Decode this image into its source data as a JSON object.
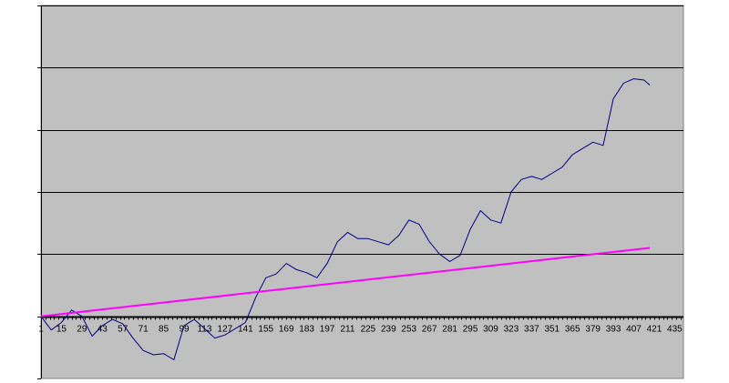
{
  "colors": {
    "plot_background": "#c0c0c0",
    "gridline": "#000000",
    "series_primary": "#000080",
    "series_trend": "#ff00ff"
  },
  "chart_data": {
    "type": "line",
    "title": "",
    "xlabel": "",
    "ylabel": "",
    "grid": true,
    "legend": "none",
    "x_tick_labels": [
      "1",
      "15",
      "29",
      "43",
      "57",
      "71",
      "85",
      "99",
      "113",
      "127",
      "141",
      "155",
      "169",
      "183",
      "197",
      "211",
      "225",
      "239",
      "253",
      "267",
      "281",
      "295",
      "309",
      "323",
      "337",
      "351",
      "365",
      "379",
      "393",
      "407",
      "421",
      "435"
    ],
    "x_range": [
      1,
      441
    ],
    "y_range": [
      -1,
      5
    ],
    "y_gridlines": [
      0,
      1,
      2,
      3,
      4,
      5
    ],
    "series": [
      {
        "color": "#000080",
        "x": [
          1,
          8,
          15,
          22,
          29,
          36,
          43,
          50,
          57,
          64,
          71,
          78,
          85,
          92,
          99,
          106,
          113,
          120,
          127,
          134,
          141,
          148,
          155,
          162,
          169,
          176,
          183,
          190,
          197,
          204,
          211,
          218,
          225,
          232,
          239,
          246,
          253,
          260,
          267,
          274,
          281,
          288,
          295,
          302,
          309,
          316,
          323,
          330,
          337,
          344,
          351,
          358,
          365,
          372,
          379,
          386,
          393,
          400,
          407,
          414,
          418
        ],
        "y": [
          0.0,
          -0.22,
          -0.1,
          0.1,
          0.0,
          -0.32,
          -0.15,
          -0.05,
          -0.12,
          -0.35,
          -0.55,
          -0.62,
          -0.6,
          -0.7,
          -0.15,
          -0.05,
          -0.2,
          -0.35,
          -0.3,
          -0.2,
          -0.1,
          0.3,
          0.62,
          0.68,
          0.85,
          0.75,
          0.7,
          0.62,
          0.85,
          1.2,
          1.35,
          1.25,
          1.25,
          1.2,
          1.15,
          1.3,
          1.55,
          1.48,
          1.2,
          1.0,
          0.88,
          0.98,
          1.4,
          1.7,
          1.55,
          1.5,
          2.0,
          2.2,
          2.25,
          2.2,
          2.3,
          2.4,
          2.6,
          2.7,
          2.8,
          2.75,
          3.5,
          3.75,
          3.82,
          3.8,
          3.72
        ]
      },
      {
        "color": "#ff00ff",
        "x": [
          1,
          418
        ],
        "y": [
          0.0,
          1.1
        ]
      }
    ]
  }
}
